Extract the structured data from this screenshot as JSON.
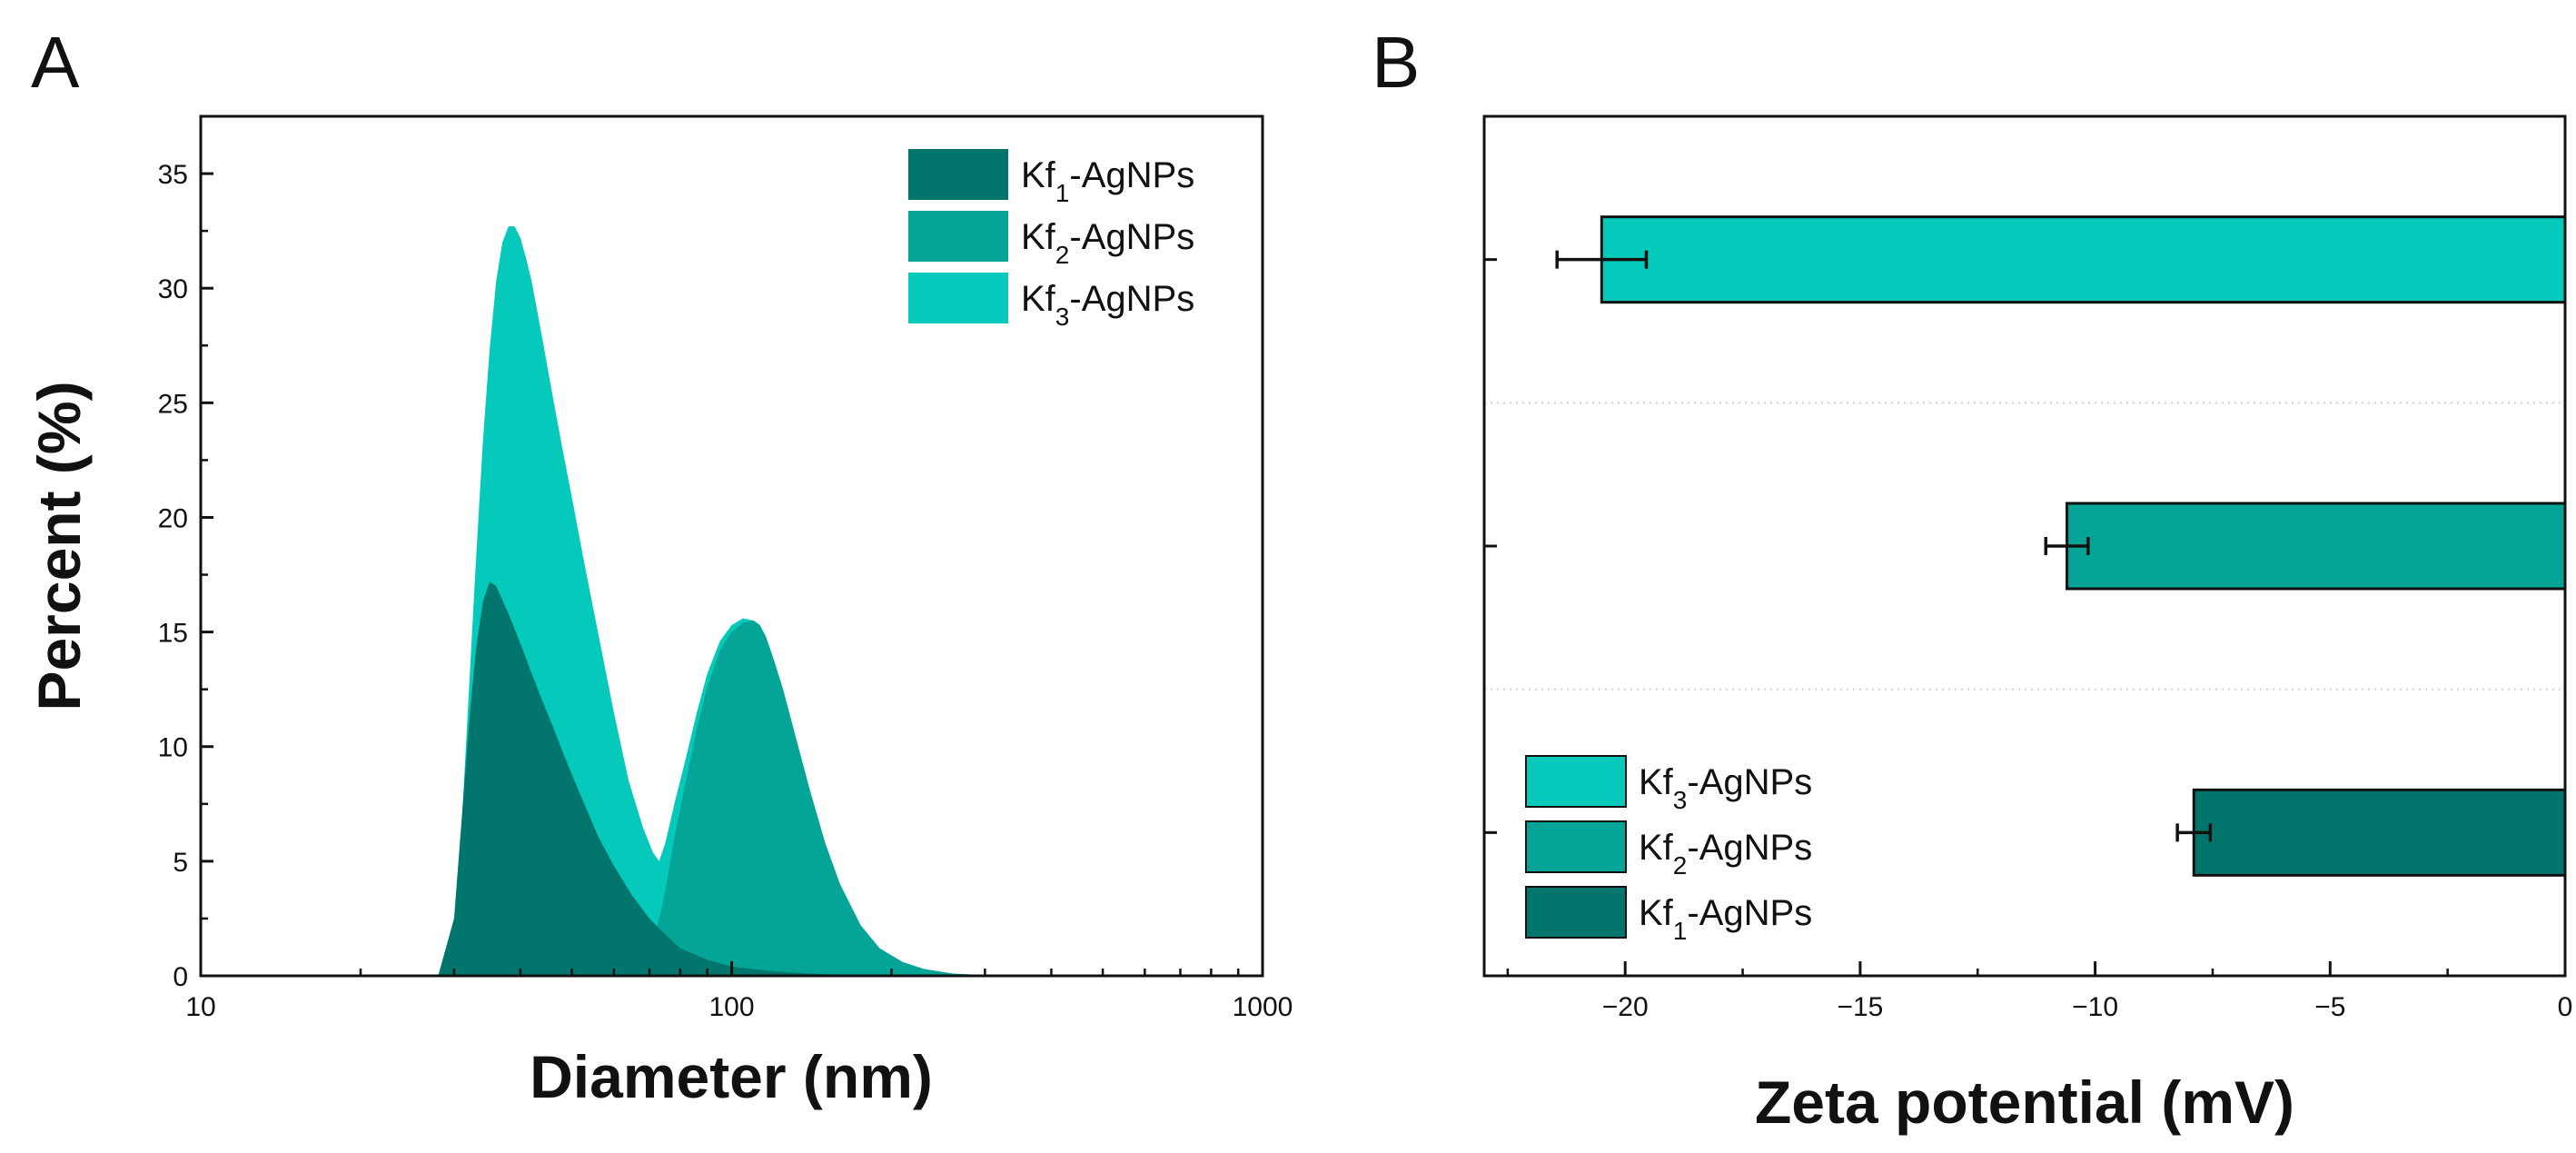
{
  "panels": {
    "a_label": "A",
    "b_label": "B"
  },
  "colors": {
    "kf1": "#02766D",
    "kf2": "#04A596",
    "kf3": "#05C9BA",
    "axis": "#111111"
  },
  "chart_data": [
    {
      "panel": "A",
      "type": "area",
      "xscale": "log",
      "xlabel": "Diameter (nm)",
      "ylabel": "Percent (%)",
      "xlim": [
        10,
        1000
      ],
      "ylim": [
        0,
        37.5
      ],
      "xticks": [
        10,
        100,
        1000
      ],
      "xtick_labels": [
        "10",
        "100",
        "1000"
      ],
      "yticks": [
        0,
        5,
        10,
        15,
        20,
        25,
        30,
        35
      ],
      "ytick_labels": [
        "0",
        "5",
        "10",
        "15",
        "20",
        "25",
        "30",
        "35"
      ],
      "legend_position": "top-right",
      "series": [
        {
          "name": "Kf3-AgNPs",
          "base": "Kf",
          "sub": "3",
          "suffix": "-AgNPs",
          "color": "#05C9BA",
          "x": [
            28,
            30,
            31,
            32,
            33,
            34,
            35,
            36,
            37,
            38,
            39,
            40,
            41,
            42,
            44,
            46,
            48,
            50,
            53,
            56,
            60,
            64,
            68,
            71,
            73,
            75,
            78,
            82,
            86,
            90,
            95,
            100,
            105,
            110,
            113,
            116,
            120,
            125,
            130,
            140,
            150,
            160,
            175,
            190,
            210,
            230,
            260,
            300,
            350,
            400
          ],
          "y": [
            0,
            1.5,
            6.5,
            12.5,
            18.2,
            23.3,
            27.3,
            30.3,
            32.0,
            32.7,
            32.7,
            32.2,
            31.3,
            30.3,
            27.8,
            25.3,
            23.0,
            20.9,
            17.8,
            15.0,
            11.5,
            8.5,
            6.5,
            5.4,
            5.0,
            5.8,
            7.5,
            9.5,
            11.5,
            13.2,
            14.6,
            15.3,
            15.6,
            15.5,
            15.3,
            14.8,
            13.8,
            12.5,
            11.0,
            8.2,
            5.8,
            4.0,
            2.2,
            1.2,
            0.6,
            0.3,
            0.1,
            0.03,
            0.01,
            0
          ]
        },
        {
          "name": "Kf2-AgNPs",
          "base": "Kf",
          "sub": "2",
          "suffix": "-AgNPs",
          "color": "#04A596",
          "x": [
            60,
            65,
            70,
            72,
            74,
            76,
            78,
            82,
            86,
            90,
            95,
            100,
            105,
            110,
            113,
            116,
            120,
            125,
            130,
            140,
            150,
            160,
            175,
            190,
            210,
            230,
            260,
            300,
            350,
            400
          ],
          "y": [
            0.5,
            1.0,
            1.6,
            2.0,
            3.0,
            4.5,
            6.0,
            8.5,
            10.8,
            12.6,
            14.2,
            15.0,
            15.4,
            15.5,
            15.3,
            14.8,
            13.8,
            12.5,
            11.0,
            8.2,
            5.8,
            4.0,
            2.2,
            1.2,
            0.6,
            0.3,
            0.1,
            0.03,
            0.01,
            0
          ]
        },
        {
          "name": "Kf1-AgNPs",
          "base": "Kf",
          "sub": "1",
          "suffix": "-AgNPs",
          "color": "#02766D",
          "x": [
            28,
            30,
            31,
            32,
            33,
            34,
            35,
            36,
            37,
            38,
            40,
            42,
            44,
            46,
            48,
            50,
            53,
            56,
            60,
            65,
            70,
            75,
            80,
            90,
            100,
            120,
            140,
            170,
            200
          ],
          "y": [
            0,
            2.5,
            6.8,
            11.0,
            14.3,
            16.3,
            17.2,
            17.0,
            16.4,
            15.8,
            14.5,
            13.2,
            12.0,
            10.9,
            9.8,
            8.8,
            7.4,
            6.1,
            4.8,
            3.5,
            2.5,
            1.8,
            1.2,
            0.7,
            0.4,
            0.2,
            0.1,
            0.03,
            0
          ]
        }
      ]
    },
    {
      "panel": "B",
      "type": "bar",
      "orientation": "horizontal",
      "xlabel": "Zeta potential (mV)",
      "ylabel": "",
      "xlim": [
        -23,
        0
      ],
      "xticks": [
        -20,
        -15,
        -10,
        -5,
        0
      ],
      "xtick_labels": [
        "−20",
        "−15",
        "−10",
        "−5",
        "0"
      ],
      "legend_position": "bottom-left",
      "categories": [
        "Kf1-AgNPs",
        "Kf2-AgNPs",
        "Kf3-AgNPs"
      ],
      "values": [
        -7.9,
        -10.6,
        -20.5
      ],
      "errors": [
        0.35,
        0.45,
        0.95
      ],
      "bar_colors": [
        "#02766D",
        "#04A596",
        "#05C9BA"
      ],
      "legend": [
        {
          "base": "Kf",
          "sub": "3",
          "suffix": "-AgNPs",
          "color": "#05C9BA"
        },
        {
          "base": "Kf",
          "sub": "2",
          "suffix": "-AgNPs",
          "color": "#04A596"
        },
        {
          "base": "Kf",
          "sub": "1",
          "suffix": "-AgNPs",
          "color": "#02766D"
        }
      ]
    }
  ]
}
